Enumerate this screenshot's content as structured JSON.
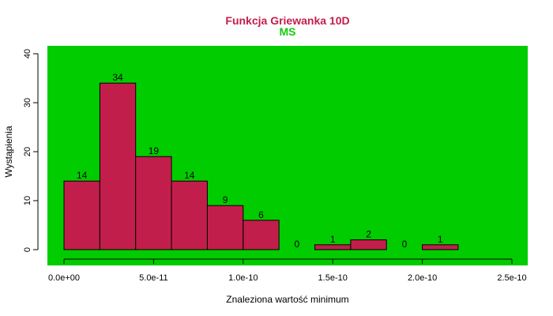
{
  "chart_data": {
    "type": "bar",
    "title": "Funkcja Griewanka 10D",
    "subtitle": "MS",
    "xlabel": "Znaleziona wartość minimum",
    "ylabel": "Wystąpienia",
    "bins": [
      {
        "start": 0.0,
        "end": 2e-11,
        "count": 14
      },
      {
        "start": 2e-11,
        "end": 4e-11,
        "count": 34
      },
      {
        "start": 4e-11,
        "end": 6e-11,
        "count": 19
      },
      {
        "start": 6e-11,
        "end": 8e-11,
        "count": 14
      },
      {
        "start": 8e-11,
        "end": 1e-10,
        "count": 9
      },
      {
        "start": 1e-10,
        "end": 1.2e-10,
        "count": 6
      },
      {
        "start": 1.2e-10,
        "end": 1.4e-10,
        "count": 0
      },
      {
        "start": 1.4e-10,
        "end": 1.6e-10,
        "count": 1
      },
      {
        "start": 1.6e-10,
        "end": 1.8e-10,
        "count": 2
      },
      {
        "start": 1.8e-10,
        "end": 2e-10,
        "count": 0
      },
      {
        "start": 2e-10,
        "end": 2.2e-10,
        "count": 1
      }
    ],
    "data_labels": [
      "14",
      "34",
      "19",
      "14",
      "9",
      "6",
      "0",
      "1",
      "2",
      "0",
      "1"
    ],
    "xlim": [
      0,
      2.5e-10
    ],
    "ylim": [
      0,
      40
    ],
    "x_ticks": [
      0,
      5e-11,
      1e-10,
      1.5e-10,
      2e-10,
      2.5e-10
    ],
    "x_tick_labels": [
      "0.0e+00",
      "5.0e-11",
      "1.0e-10",
      "1.5e-10",
      "2.0e-10",
      "2.5e-10"
    ],
    "y_ticks": [
      0,
      10,
      20,
      30,
      40
    ],
    "y_tick_labels": [
      "0",
      "10",
      "20",
      "30",
      "40"
    ],
    "grid": false,
    "colors": {
      "background": "#00cc00",
      "bar_fill": "#c21e4b",
      "bar_stroke": "#000000",
      "title": "#c21e4b",
      "subtitle": "#11cc11"
    }
  }
}
